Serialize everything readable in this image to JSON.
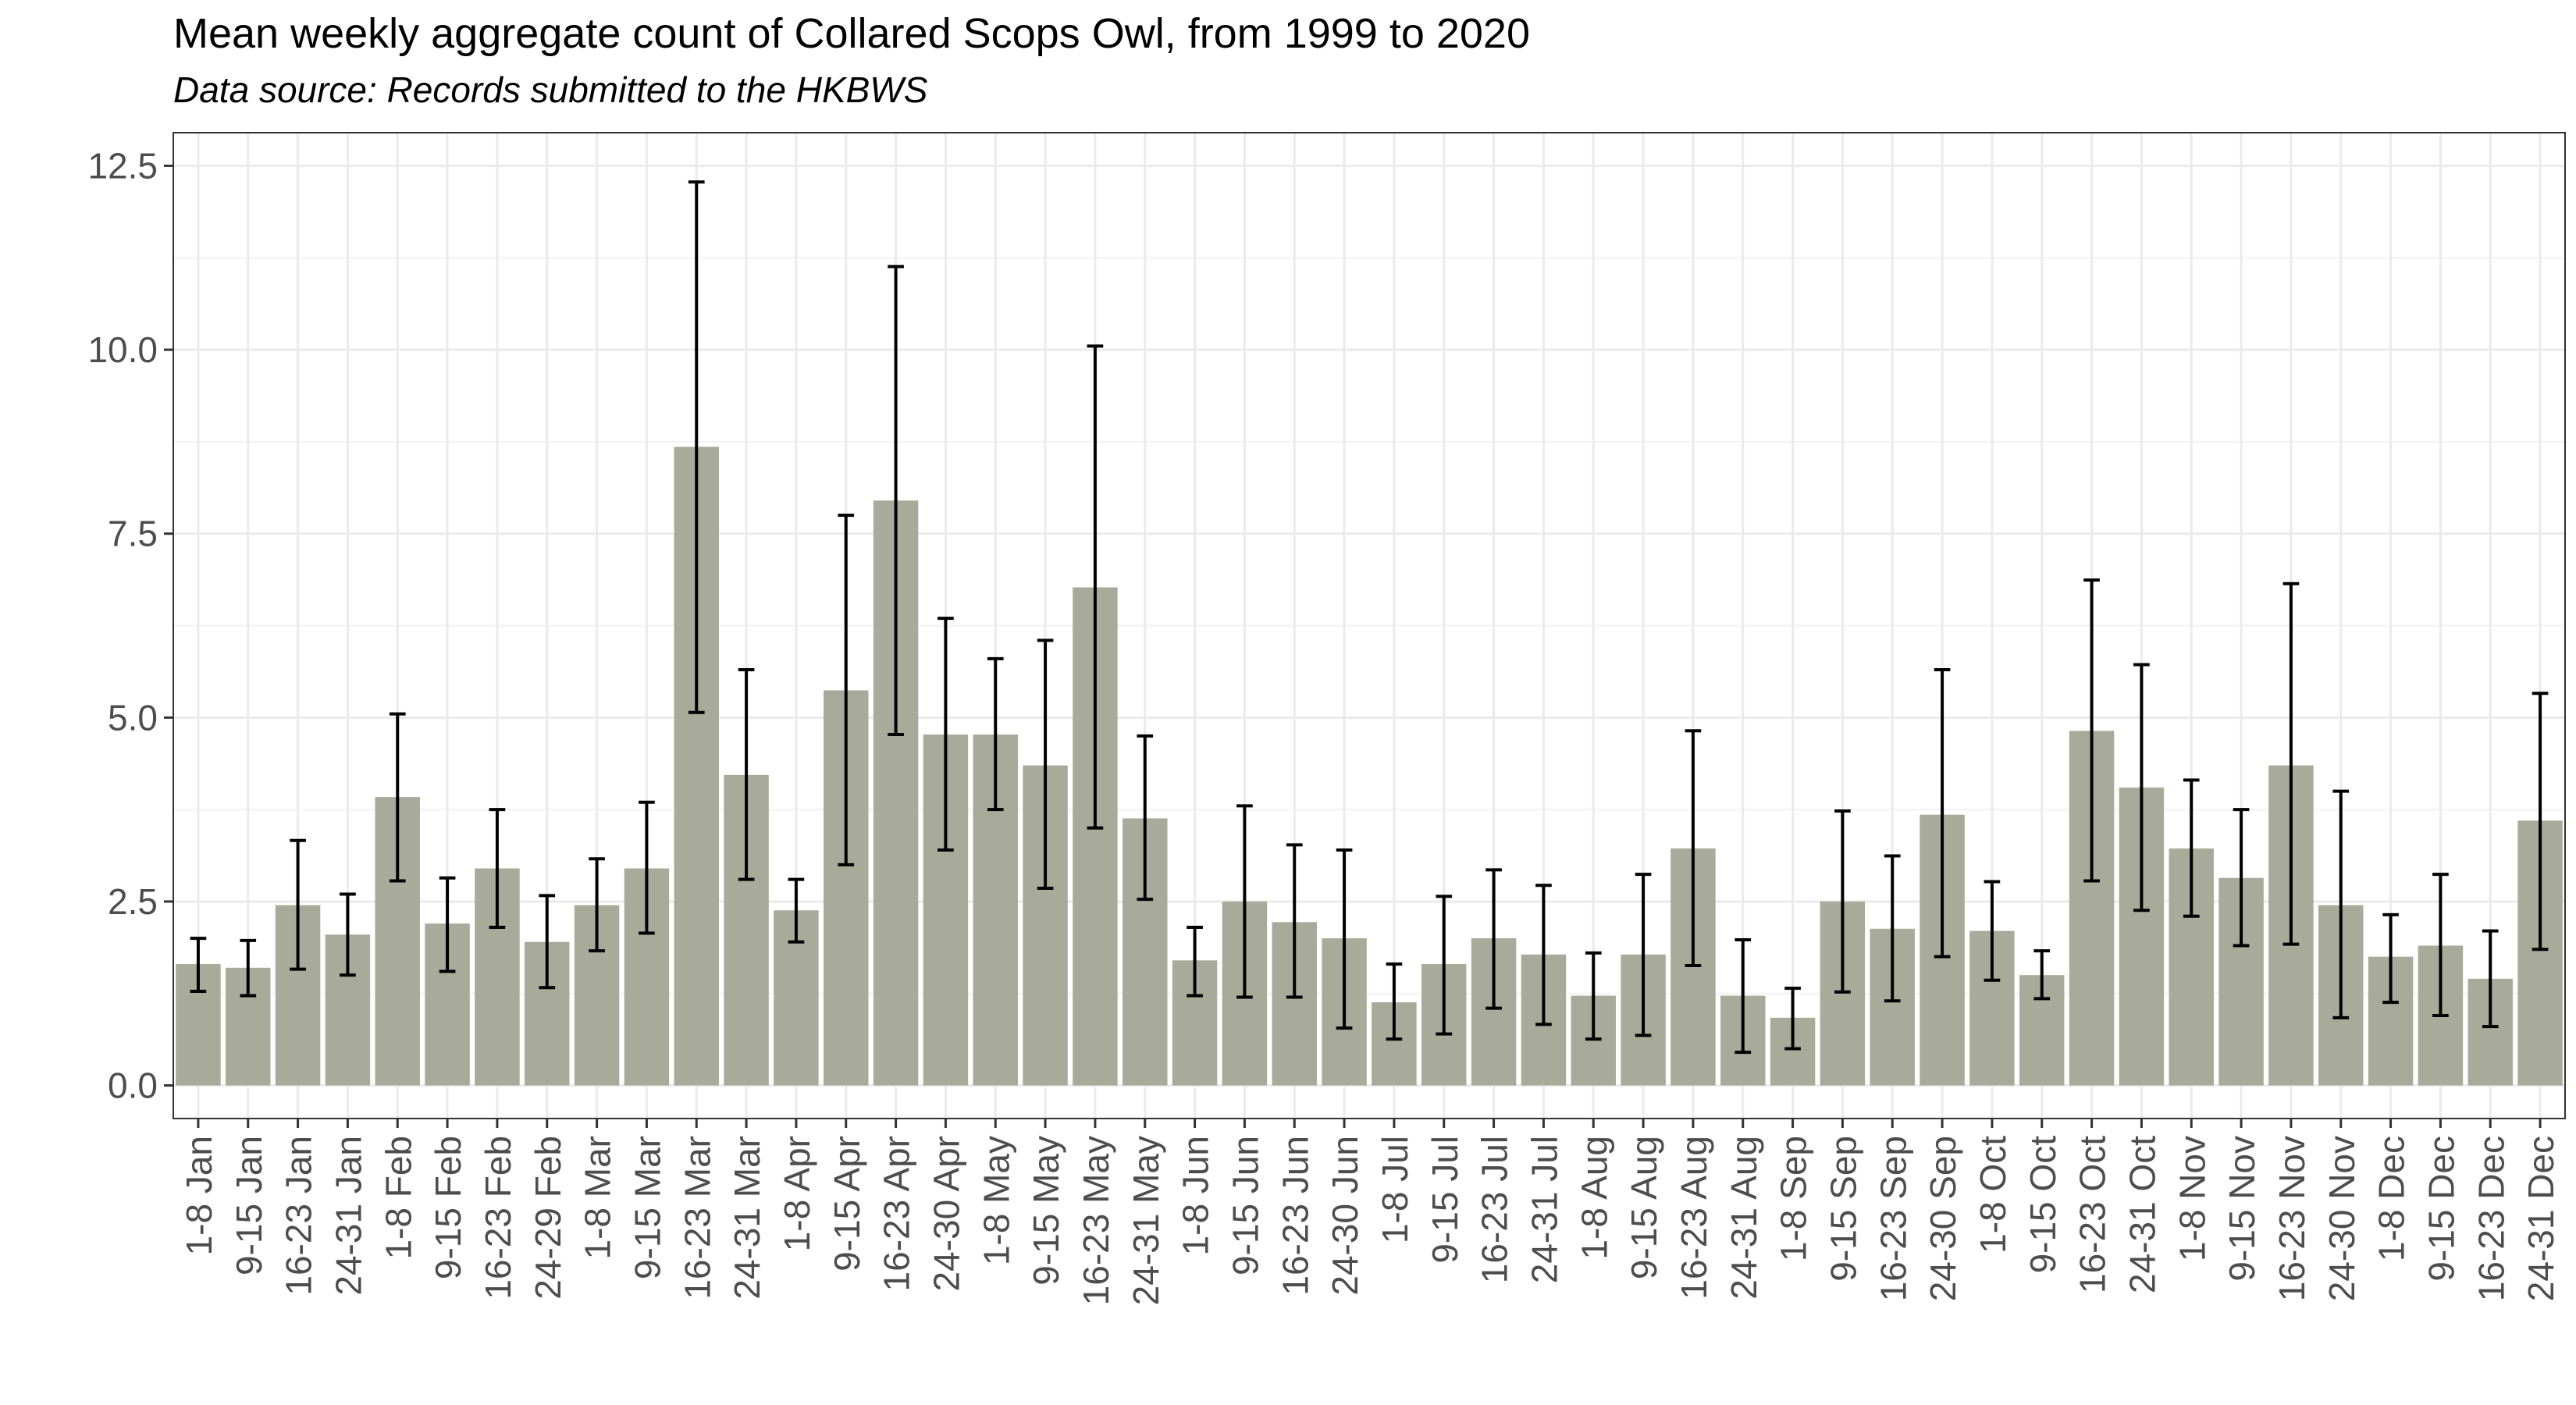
{
  "chart_data": {
    "type": "bar",
    "title": "Mean weekly aggregate count of Collared Scops Owl, from 1999 to 2020",
    "subtitle": "Data source: Records submitted to the HKBWS",
    "xlabel": "",
    "ylabel": "",
    "ylim": [
      -0.45,
      12.95
    ],
    "yticks": [
      0.0,
      2.5,
      5.0,
      7.5,
      10.0,
      12.5
    ],
    "ytick_labels": [
      "0.0",
      "2.5",
      "5.0",
      "7.5",
      "10.0",
      "12.5"
    ],
    "grid": true,
    "legend": "none",
    "bar_color": "#a8aa9a",
    "error_color": "#000000",
    "categories": [
      "1-8 Jan",
      "9-15 Jan",
      "16-23 Jan",
      "24-31 Jan",
      "1-8 Feb",
      "9-15 Feb",
      "16-23 Feb",
      "24-29 Feb",
      "1-8 Mar",
      "9-15 Mar",
      "16-23 Mar",
      "24-31 Mar",
      "1-8 Apr",
      "9-15 Apr",
      "16-23 Apr",
      "24-30 Apr",
      "1-8 May",
      "9-15 May",
      "16-23 May",
      "24-31 May",
      "1-8 Jun",
      "9-15 Jun",
      "16-23 Jun",
      "24-30 Jun",
      "1-8 Jul",
      "9-15 Jul",
      "16-23 Jul",
      "24-31 Jul",
      "1-8 Aug",
      "9-15 Aug",
      "16-23 Aug",
      "24-31 Aug",
      "1-8 Sep",
      "9-15 Sep",
      "16-23 Sep",
      "24-30 Sep",
      "1-8 Oct",
      "9-15 Oct",
      "16-23 Oct",
      "24-31 Oct",
      "1-8 Nov",
      "9-15 Nov",
      "16-23 Nov",
      "24-30 Nov",
      "1-8 Dec",
      "9-15 Dec",
      "16-23 Dec",
      "24-31 Dec"
    ],
    "values": [
      1.65,
      1.6,
      2.45,
      2.05,
      3.92,
      2.2,
      2.95,
      1.95,
      2.45,
      2.95,
      8.68,
      4.22,
      2.38,
      5.37,
      7.95,
      4.77,
      4.77,
      4.35,
      6.77,
      3.63,
      1.7,
      2.5,
      2.22,
      2.0,
      1.13,
      1.65,
      2.0,
      1.78,
      1.22,
      1.78,
      3.22,
      1.22,
      0.92,
      2.5,
      2.13,
      3.68,
      2.1,
      1.5,
      4.82,
      4.05,
      3.22,
      2.82,
      4.35,
      2.45,
      1.75,
      1.9,
      1.45,
      3.6
    ],
    "error_lower": [
      1.28,
      1.22,
      1.58,
      1.5,
      2.78,
      1.55,
      2.15,
      1.33,
      1.83,
      2.07,
      5.07,
      2.8,
      1.95,
      3.0,
      4.77,
      3.2,
      3.75,
      2.68,
      3.5,
      2.53,
      1.22,
      1.2,
      1.2,
      0.78,
      0.63,
      0.7,
      1.05,
      0.83,
      0.63,
      0.68,
      1.63,
      0.45,
      0.5,
      1.27,
      1.15,
      1.75,
      1.43,
      1.18,
      2.78,
      2.38,
      2.3,
      1.9,
      1.92,
      0.92,
      1.13,
      0.95,
      0.8,
      1.85
    ],
    "error_upper": [
      2.0,
      1.97,
      3.33,
      2.6,
      5.05,
      2.82,
      3.75,
      2.58,
      3.08,
      3.85,
      12.28,
      5.65,
      2.8,
      7.75,
      11.13,
      6.35,
      5.8,
      6.05,
      10.05,
      4.75,
      2.15,
      3.8,
      3.27,
      3.2,
      1.65,
      2.57,
      2.93,
      2.72,
      1.8,
      2.87,
      4.82,
      1.98,
      1.32,
      3.73,
      3.12,
      5.65,
      2.77,
      1.83,
      6.87,
      5.72,
      4.15,
      3.75,
      6.82,
      4.0,
      2.32,
      2.87,
      2.1,
      5.33
    ]
  }
}
